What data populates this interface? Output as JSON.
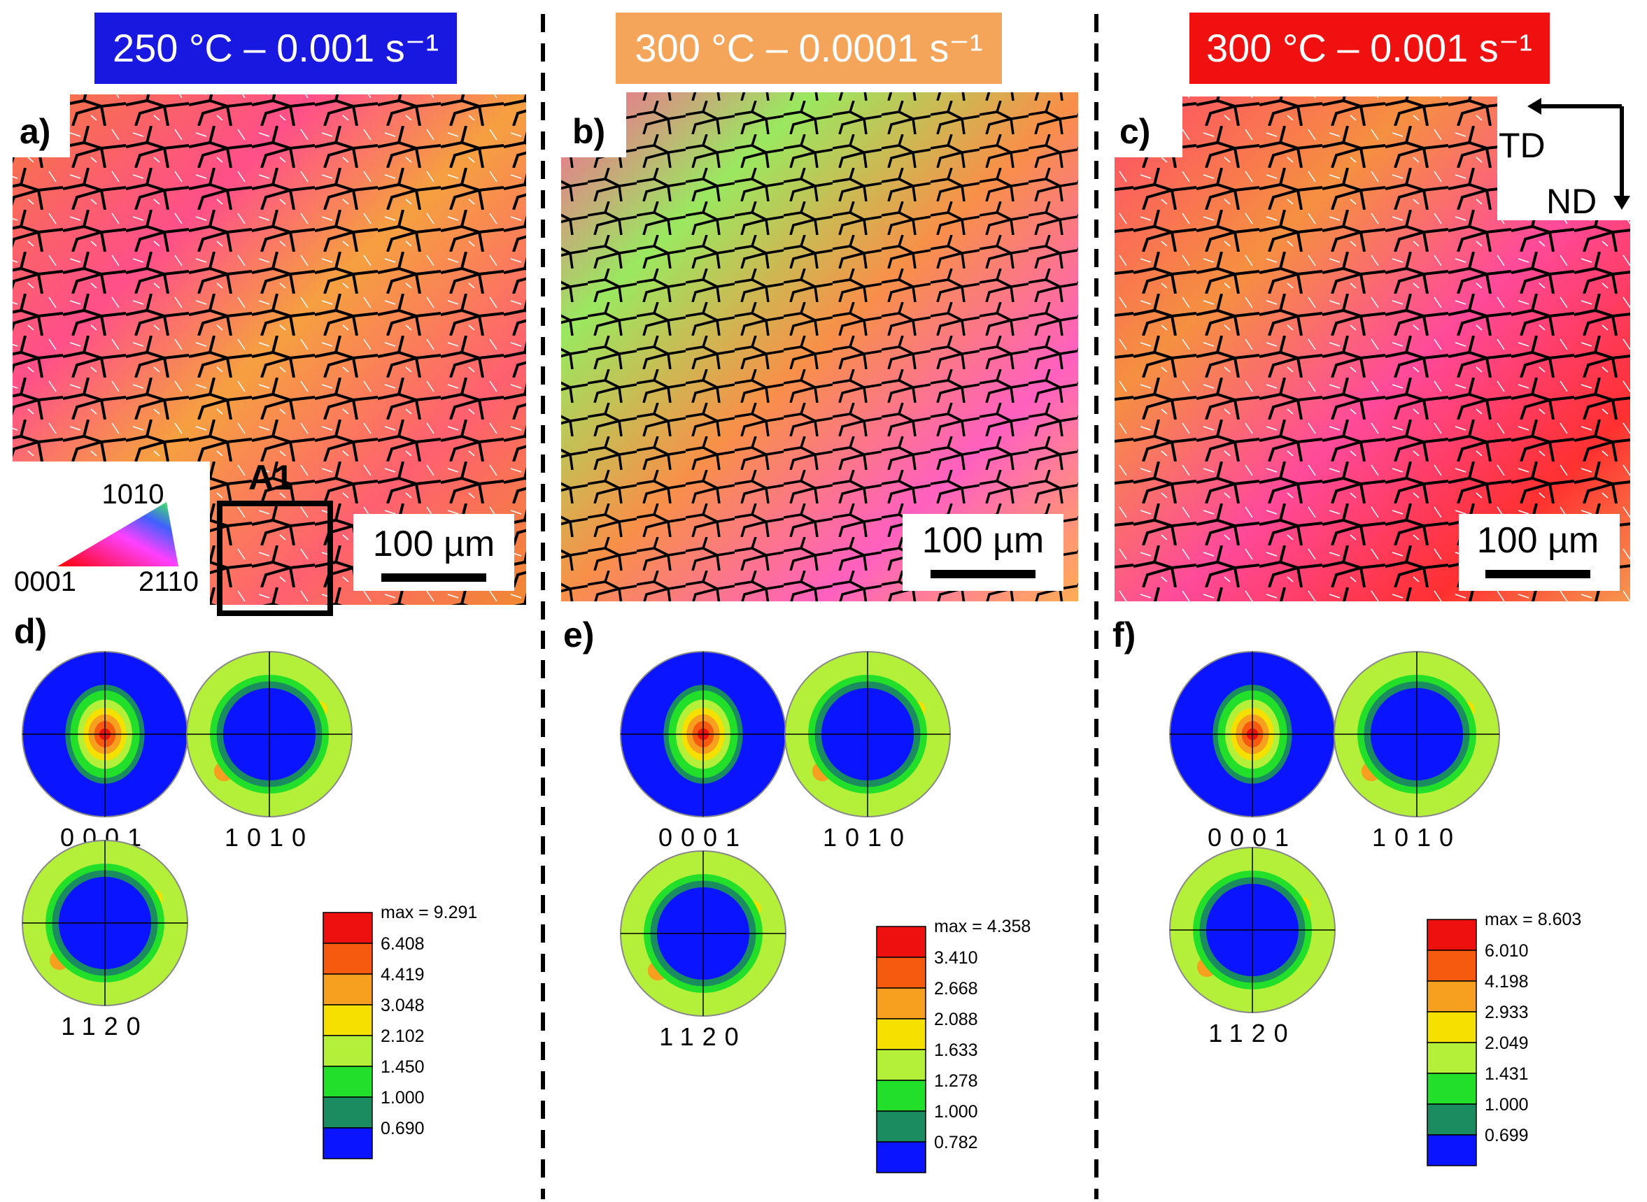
{
  "columns": [
    {
      "banner": "250 °C – 0.001 s⁻¹",
      "banner_color": "#1818e0",
      "map_label": "a)",
      "scale_label": "100 µm",
      "pf_label": "d)",
      "pf_names": [
        "0001",
        "1010",
        "1120"
      ],
      "legend_values": [
        "6.408",
        "4.419",
        "3.048",
        "2.102",
        "1.450",
        "1.000",
        "0.690"
      ],
      "legend_max": "max = 9.291"
    },
    {
      "banner": "300 °C – 0.0001 s⁻¹",
      "banner_color": "#f5a55a",
      "map_label": "b)",
      "scale_label": "100 µm",
      "pf_label": "e)",
      "pf_names": [
        "0001",
        "1010",
        "1120"
      ],
      "legend_values": [
        "3.410",
        "2.668",
        "2.088",
        "1.633",
        "1.278",
        "1.000",
        "0.782"
      ],
      "legend_max": "max = 4.358"
    },
    {
      "banner": "300 °C – 0.001 s⁻¹",
      "banner_color": "#f01010",
      "map_label": "c)",
      "scale_label": "100 µm",
      "pf_label": "f)",
      "pf_names": [
        "0001",
        "1010",
        "1120"
      ],
      "legend_values": [
        "6.010",
        "4.198",
        "2.933",
        "2.049",
        "1.431",
        "1.000",
        "0.699"
      ],
      "legend_max": "max = 8.603"
    }
  ],
  "inset_label": "A1",
  "ipf_key": {
    "top": "1010",
    "left": "0001",
    "right": "2110"
  },
  "axes": {
    "horizontal": "TD",
    "vertical": "ND"
  },
  "colors": {
    "blue": "#0a14ff",
    "teal": "#1a8c60",
    "green": "#22e02a",
    "lime": "#b4f03a",
    "yellow": "#f5e000",
    "orange": "#f7a020",
    "dark_orange": "#f55a0f",
    "red": "#ee0f0f"
  }
}
